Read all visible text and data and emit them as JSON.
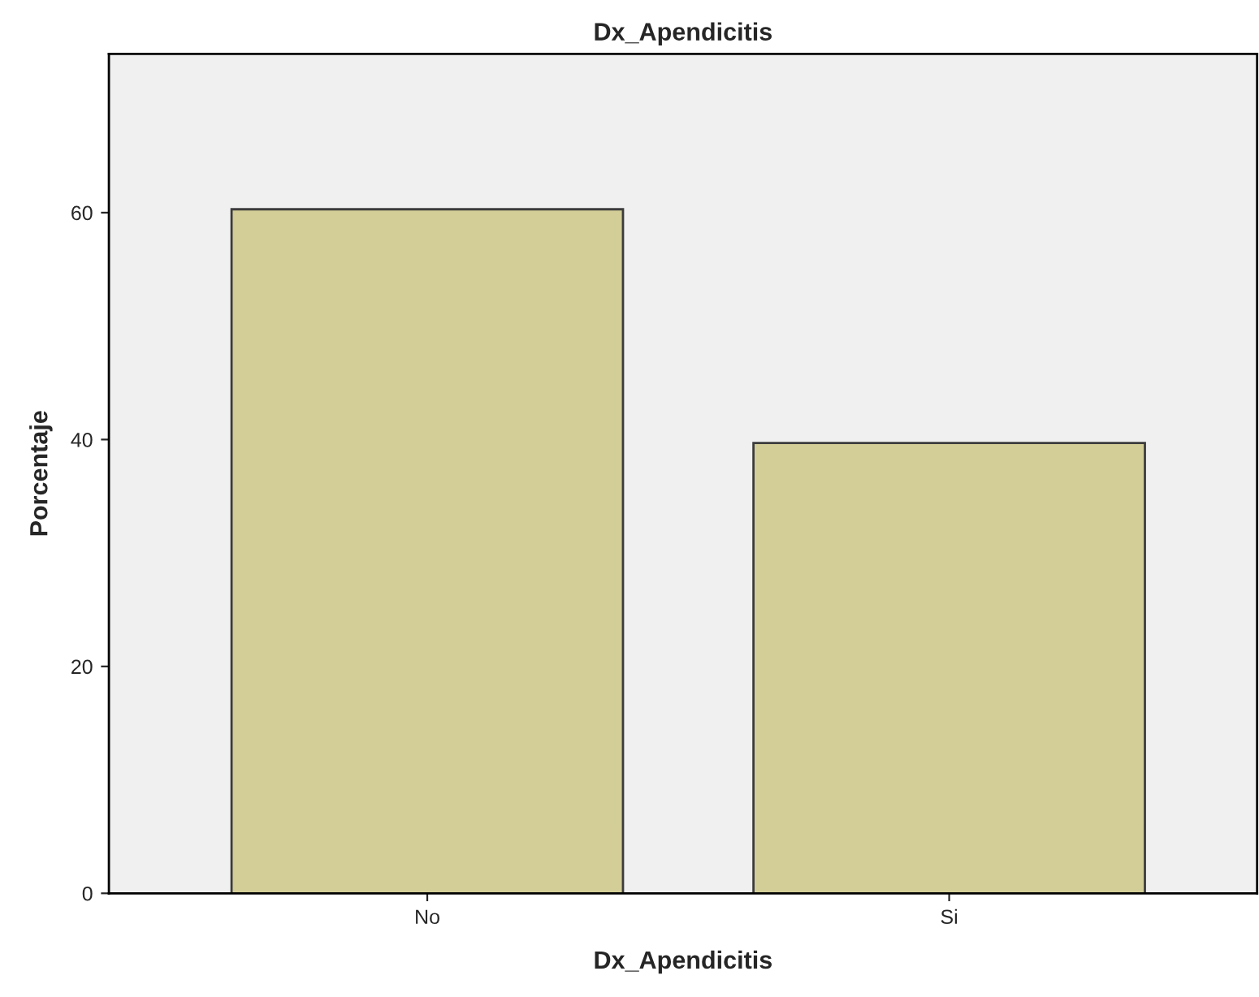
{
  "chart_data": {
    "type": "bar",
    "title": "Dx_Apendicitis",
    "xlabel": "Dx_Apendicitis",
    "ylabel": "Porcentaje",
    "categories": [
      "No",
      "Si"
    ],
    "values": [
      60.3,
      39.7
    ],
    "color": "#d3ce97",
    "ylim": [
      0,
      74
    ],
    "yticks": [
      0,
      20,
      40,
      60
    ],
    "grid": false,
    "legend": false
  }
}
